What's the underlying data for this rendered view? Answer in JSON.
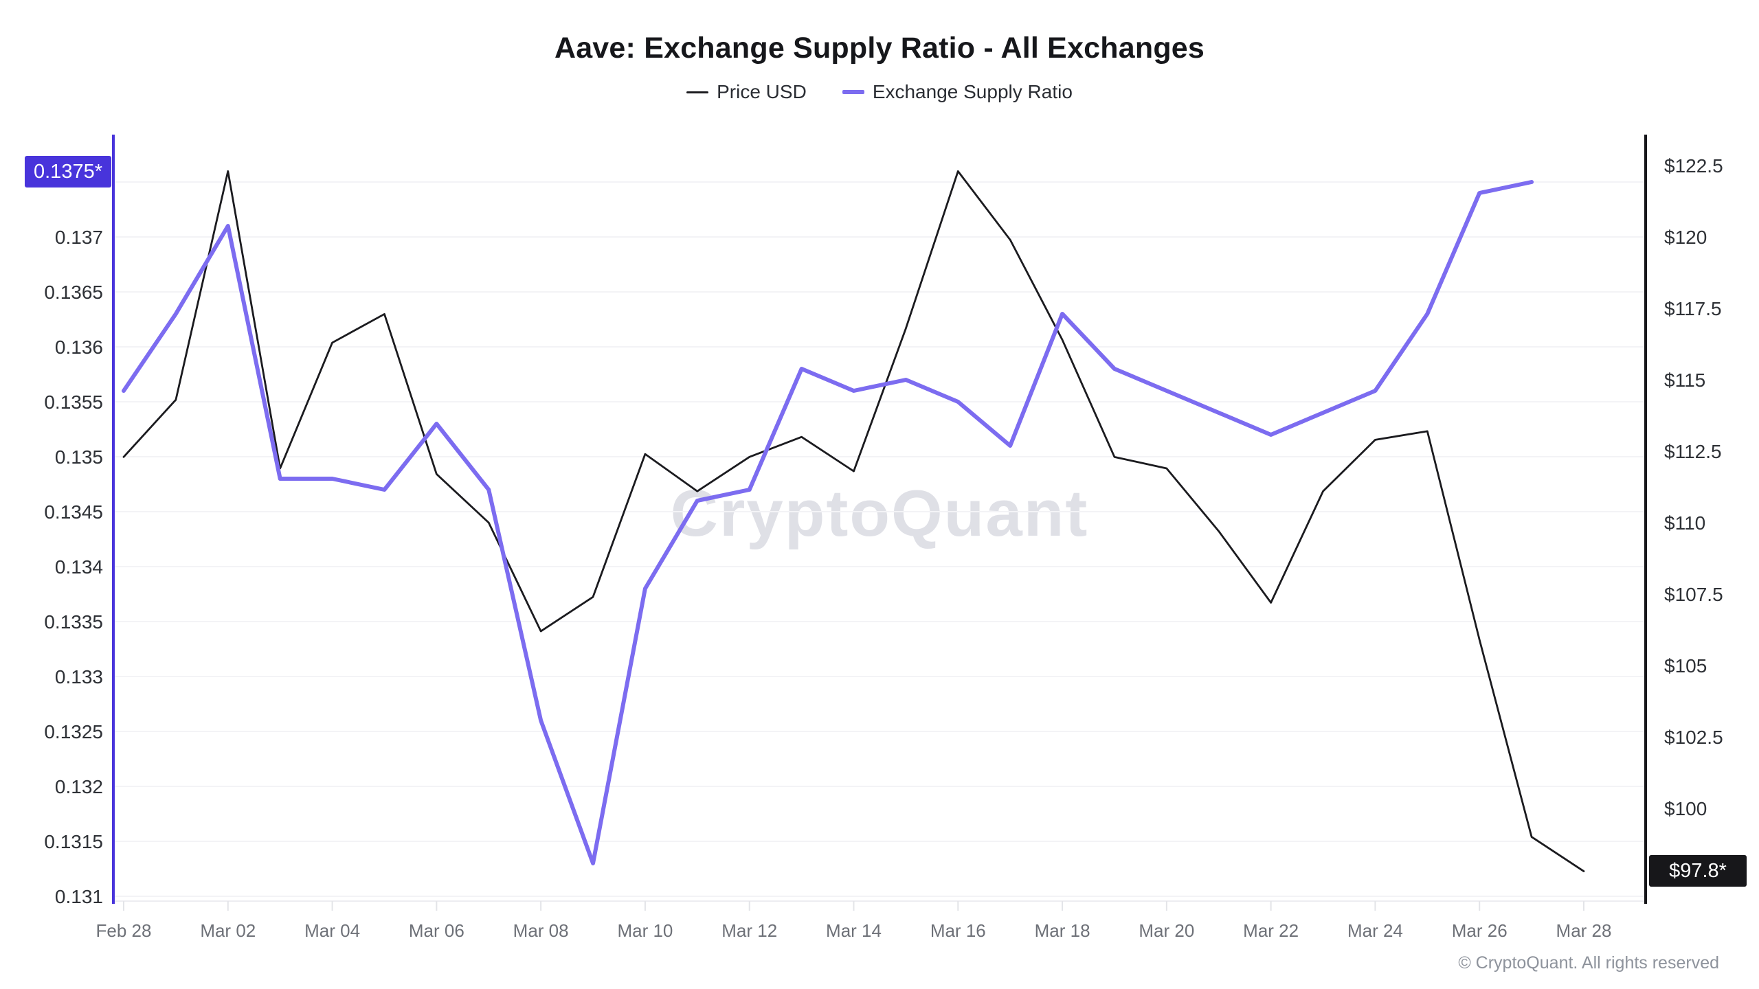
{
  "title": "Aave: Exchange Supply Ratio - All Exchanges",
  "legend": [
    {
      "label": "Price USD",
      "color": "#1b1b1f"
    },
    {
      "label": "Exchange Supply Ratio",
      "color": "#7c6cf0"
    }
  ],
  "watermark_text": "CryptoQuant",
  "copyright": "© CryptoQuant. All rights reserved",
  "chart_data": {
    "type": "line",
    "title": "Aave: Exchange Supply Ratio - All Exchanges",
    "categories": [
      "Feb 28",
      "Mar 01",
      "Mar 02",
      "Mar 03",
      "Mar 04",
      "Mar 05",
      "Mar 06",
      "Mar 07",
      "Mar 08",
      "Mar 09",
      "Mar 10",
      "Mar 11",
      "Mar 12",
      "Mar 13",
      "Mar 14",
      "Mar 15",
      "Mar 16",
      "Mar 17",
      "Mar 18",
      "Mar 19",
      "Mar 20",
      "Mar 21",
      "Mar 22",
      "Mar 23",
      "Mar 24",
      "Mar 25",
      "Mar 26",
      "Mar 27",
      "Mar 28"
    ],
    "x_tick_labels": [
      "Feb 28",
      "Mar 02",
      "Mar 04",
      "Mar 06",
      "Mar 08",
      "Mar 10",
      "Mar 12",
      "Mar 14",
      "Mar 16",
      "Mar 18",
      "Mar 20",
      "Mar 22",
      "Mar 24",
      "Mar 26",
      "Mar 28"
    ],
    "series": [
      {
        "name": "Price USD",
        "axis": "right",
        "color": "#1b1b1f",
        "values": [
          112.3,
          114.3,
          122.3,
          111.9,
          116.3,
          117.3,
          111.7,
          110.0,
          106.2,
          107.4,
          112.4,
          111.1,
          112.3,
          113.0,
          111.8,
          116.8,
          122.3,
          119.9,
          116.4,
          112.3,
          111.9,
          109.7,
          107.2,
          111.1,
          112.9,
          113.2,
          105.9,
          99.0,
          97.8
        ]
      },
      {
        "name": "Exchange Supply Ratio",
        "axis": "left",
        "color": "#7c6cf0",
        "values": [
          0.1356,
          0.1363,
          0.1371,
          0.1348,
          0.1348,
          0.1347,
          0.1353,
          0.1347,
          0.1326,
          0.1313,
          0.1338,
          0.1346,
          0.1347,
          0.1358,
          0.1356,
          0.1357,
          0.1355,
          0.1351,
          0.1363,
          0.1358,
          0.1356,
          0.1354,
          0.1352,
          0.1354,
          0.1356,
          0.1363,
          0.1374,
          0.1375,
          null
        ]
      }
    ],
    "left_axis": {
      "range": [
        0.131,
        0.1375
      ],
      "current_badge": "0.1375*",
      "badge_color": "#4834db",
      "ticks": [
        {
          "label": "0.1375*",
          "value": 0.1375
        },
        {
          "label": "0.137",
          "value": 0.137
        },
        {
          "label": "0.1365",
          "value": 0.1365
        },
        {
          "label": "0.136",
          "value": 0.136
        },
        {
          "label": "0.1355",
          "value": 0.1355
        },
        {
          "label": "0.135",
          "value": 0.135
        },
        {
          "label": "0.1345",
          "value": 0.1345
        },
        {
          "label": "0.134",
          "value": 0.134
        },
        {
          "label": "0.1335",
          "value": 0.1335
        },
        {
          "label": "0.133",
          "value": 0.133
        },
        {
          "label": "0.1325",
          "value": 0.1325
        },
        {
          "label": "0.132",
          "value": 0.132
        },
        {
          "label": "0.1315",
          "value": 0.1315
        },
        {
          "label": "0.131",
          "value": 0.131
        }
      ]
    },
    "right_axis": {
      "range": [
        97.8,
        122.5
      ],
      "current_badge": "$97.8*",
      "badge_color": "#17171a",
      "ticks": [
        {
          "label": "$122.5",
          "value": 122.5
        },
        {
          "label": "$120",
          "value": 120
        },
        {
          "label": "$117.5",
          "value": 117.5
        },
        {
          "label": "$115",
          "value": 115
        },
        {
          "label": "$112.5",
          "value": 112.5
        },
        {
          "label": "$110",
          "value": 110
        },
        {
          "label": "$107.5",
          "value": 107.5
        },
        {
          "label": "$105",
          "value": 105
        },
        {
          "label": "$102.5",
          "value": 102.5
        },
        {
          "label": "$100",
          "value": 100
        }
      ]
    },
    "grid": "horizontal",
    "legend_position": "top"
  }
}
